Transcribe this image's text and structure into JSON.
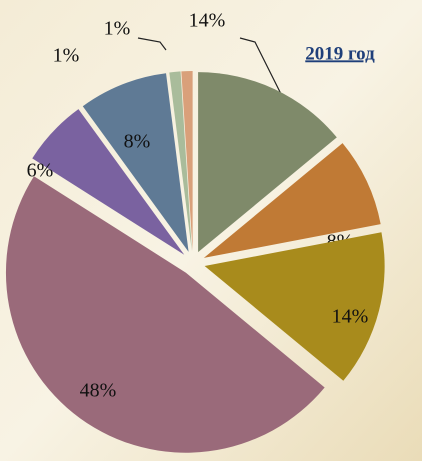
{
  "chart_data": {
    "type": "pie",
    "title": "2019 год",
    "categories": [
      null,
      null,
      null,
      null,
      null,
      null,
      null,
      null
    ],
    "values": [
      14,
      8,
      14,
      48,
      6,
      8,
      1,
      1
    ],
    "value_labels": [
      "14%",
      "8%",
      "14%",
      "48%",
      "6%",
      "8%",
      "1%",
      "1%"
    ],
    "colors": [
      "#7f8a6a",
      "#c07a35",
      "#a88b1c",
      "#9a6a7a",
      "#7a62a0",
      "#5f7a95",
      "#a9bc9b",
      "#d9a07a"
    ]
  }
}
